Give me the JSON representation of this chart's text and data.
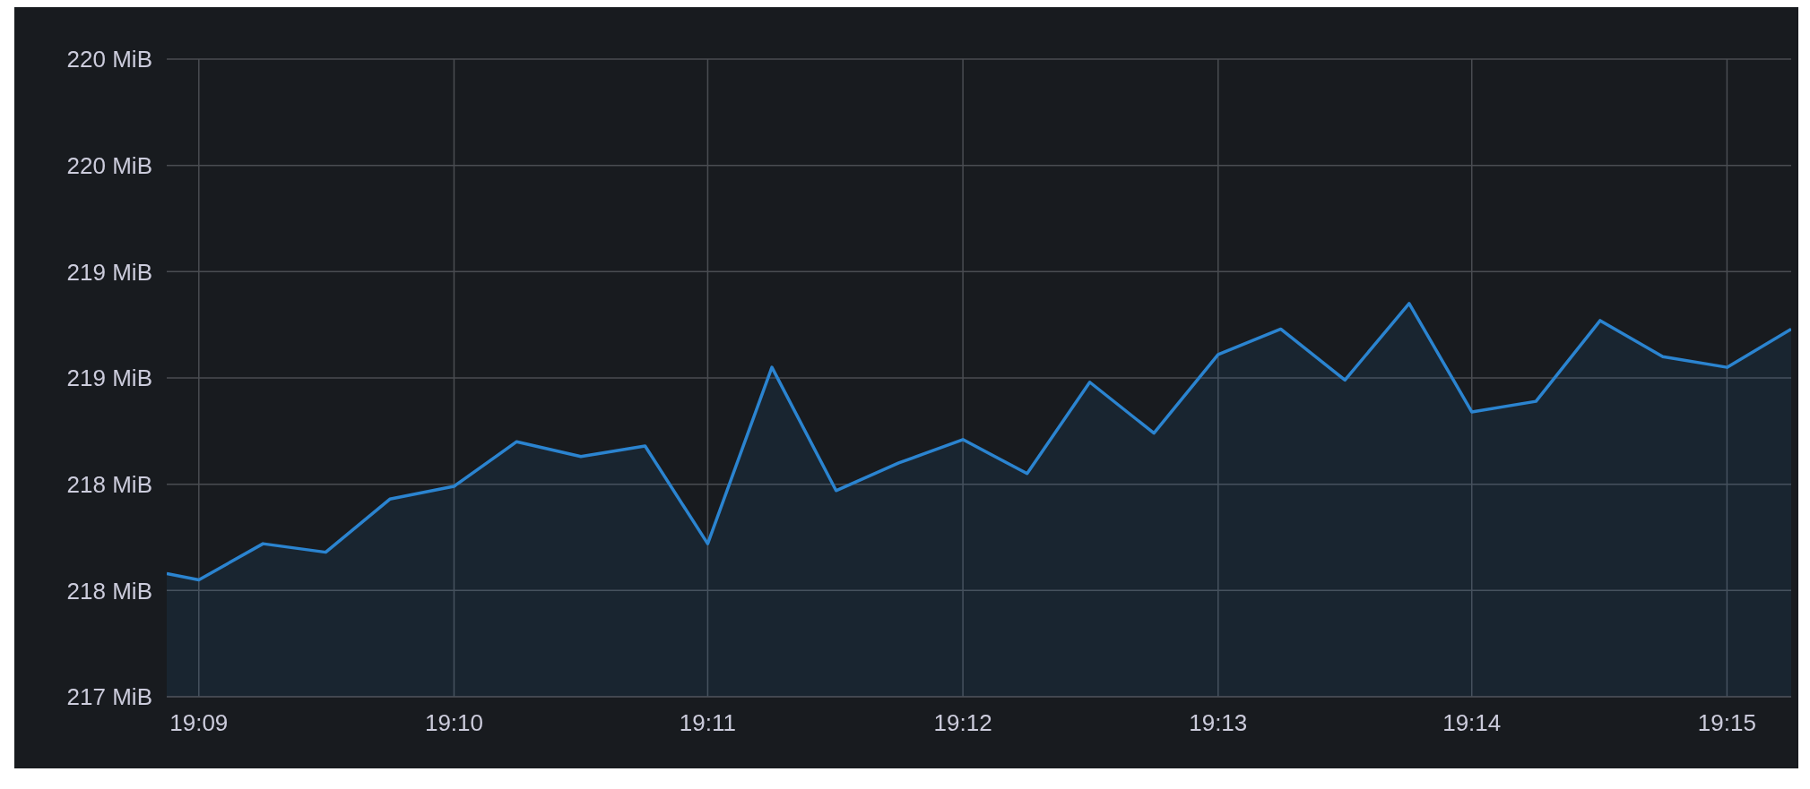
{
  "chart_data": {
    "type": "area",
    "x": [
      19.1479,
      19.15,
      19.1542,
      19.1583,
      19.1625,
      19.1667,
      19.1708,
      19.175,
      19.1792,
      19.1833,
      19.1875,
      19.1917,
      19.1958,
      19.2,
      19.2042,
      19.2083,
      19.2125,
      19.2167,
      19.2208,
      19.225,
      19.2292,
      19.2333,
      19.2375,
      19.2417,
      19.2458,
      19.25,
      19.2542
    ],
    "series": [
      {
        "color": "#2b84d0",
        "values": [
          217.58,
          217.55,
          217.72,
          217.68,
          217.93,
          217.99,
          218.2,
          218.13,
          218.18,
          217.72,
          218.55,
          217.97,
          218.1,
          218.21,
          218.05,
          218.48,
          218.24,
          218.61,
          218.73,
          218.49,
          218.85,
          218.34,
          218.39,
          218.77,
          218.6,
          218.55,
          218.73
        ]
      }
    ],
    "xlim": [
      19.1479,
      19.2542
    ],
    "xticks": [
      {
        "value": 19.15,
        "label": "19:09"
      },
      {
        "value": 19.1667,
        "label": "19:10"
      },
      {
        "value": 19.1833,
        "label": "19:11"
      },
      {
        "value": 19.2,
        "label": "19:12"
      },
      {
        "value": 19.2167,
        "label": "19:13"
      },
      {
        "value": 19.2333,
        "label": "19:14"
      },
      {
        "value": 19.25,
        "label": "19:15"
      }
    ],
    "ylim": [
      217,
      220
    ],
    "yticks": [
      {
        "value": 217,
        "label": "217 MiB"
      },
      {
        "value": 217.5,
        "label": "218 MiB"
      },
      {
        "value": 218,
        "label": "218 MiB"
      },
      {
        "value": 218.5,
        "label": "219 MiB"
      },
      {
        "value": 219,
        "label": "219 MiB"
      },
      {
        "value": 219.5,
        "label": "220 MiB"
      },
      {
        "value": 220,
        "label": "220 MiB"
      }
    ],
    "grid": true,
    "legend": false,
    "marker": "none",
    "line_style": "solid"
  }
}
